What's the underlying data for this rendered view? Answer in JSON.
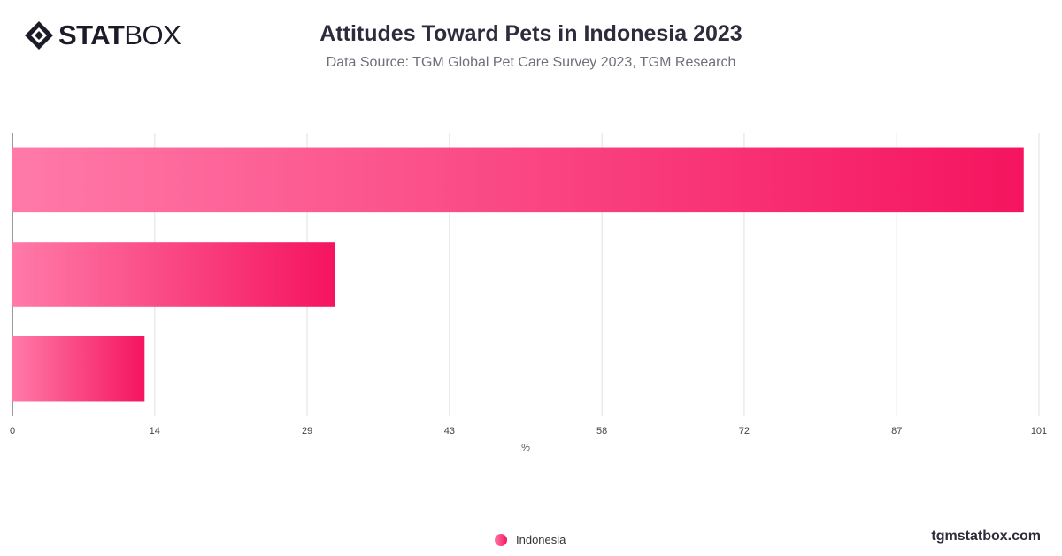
{
  "brand": {
    "name_strong": "STAT",
    "name_light": "BOX",
    "icon": "diamond-logo-icon"
  },
  "title": "Attitudes Toward Pets in Indonesia 2023",
  "subtitle": "Data Source: TGM Global Pet Care Survey 2023, TGM Research",
  "footer": "tgmstatbox.com",
  "colors": {
    "bar_start": "#ff7aa8",
    "bar_end": "#f5145f",
    "grid": "#e2e2e2",
    "axis": "#333333"
  },
  "chart_data": {
    "type": "bar",
    "orientation": "horizontal",
    "categories": [
      "",
      "",
      ""
    ],
    "series": [
      {
        "name": "Indonesia",
        "values": [
          99.5,
          31.7,
          13
        ]
      }
    ],
    "xlabel": "%",
    "xlim": [
      0,
      101
    ],
    "ticks": [
      0,
      14,
      29,
      43,
      58,
      72,
      87,
      101
    ],
    "grid": true,
    "legend": {
      "position": "bottom",
      "items": [
        "Indonesia"
      ]
    }
  }
}
